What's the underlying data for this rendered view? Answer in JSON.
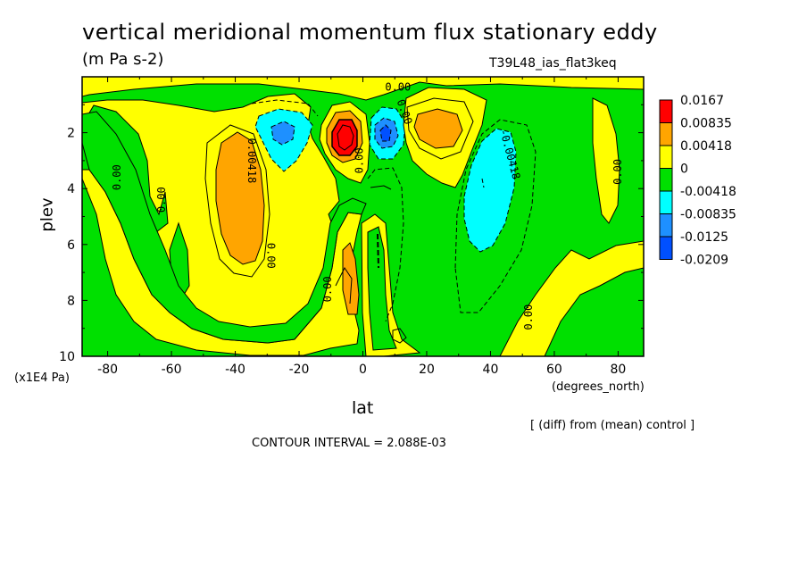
{
  "chart_data": {
    "type": "contour",
    "title": "vertical meridional momentum flux stationary eddy",
    "units": "(m Pa s-2)",
    "run_id": "T39L48_ias_flat3keq",
    "xlabel": "lat",
    "x_units": "(degrees_north)",
    "ylabel": "plev",
    "y_units": "(x1E4 Pa)",
    "xlim": [
      -88,
      88
    ],
    "ylim": [
      10,
      0
    ],
    "x_ticks": [
      "-80",
      "-60",
      "-40",
      "-20",
      "0",
      "20",
      "40",
      "60",
      "80"
    ],
    "y_ticks": [
      "2",
      "4",
      "6",
      "8",
      "10"
    ],
    "contour_interval": "CONTOUR INTERVAL = 2.088E-03",
    "note": "[ (diff) from (mean) control ]",
    "colorbar": {
      "levels": [
        "0.0167",
        "0.00835",
        "0.00418",
        "0",
        "-0.00418",
        "-0.00835",
        "-0.0125",
        "-0.0209"
      ],
      "colors": [
        "#ff0000",
        "#ffa500",
        "#ffff00",
        "#00e000",
        "#00ffff",
        "#1e90ff",
        "#0050ff",
        "#ffffff"
      ]
    },
    "contour_labels": [
      "0.00",
      "0.00",
      "0.00",
      "0.00418",
      "0.00",
      "0.00",
      "0.00",
      "0.00",
      "-0.00418",
      "0.00",
      "0.00"
    ],
    "features": [
      {
        "lat": -38,
        "plev": 4.2,
        "value": 0.005
      },
      {
        "lat": -26,
        "plev": 2.0,
        "value": -0.008
      },
      {
        "lat": -6,
        "plev": 2.2,
        "value": 0.019
      },
      {
        "lat": 8,
        "plev": 2.2,
        "value": -0.013
      },
      {
        "lat": 20,
        "plev": 1.8,
        "value": 0.006
      },
      {
        "lat": 40,
        "plev": 3.6,
        "value": -0.007
      },
      {
        "lat": -4,
        "plev": 7.6,
        "value": 0.005
      }
    ]
  }
}
